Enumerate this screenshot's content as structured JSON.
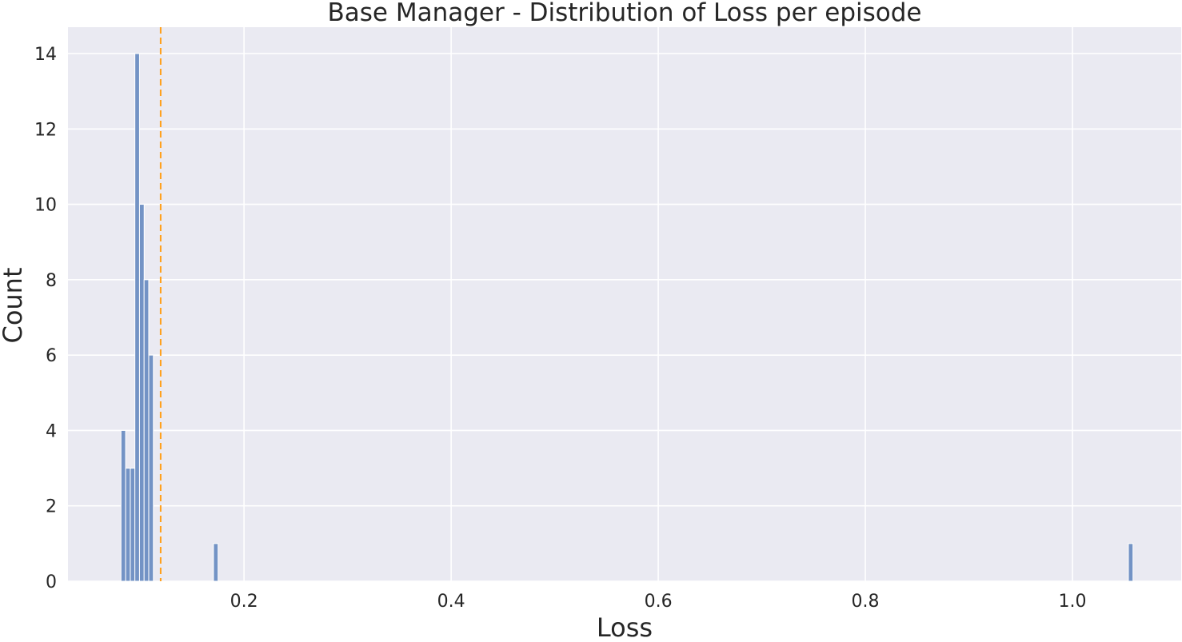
{
  "chart_data": {
    "type": "bar",
    "title": "Base Manager - Distribution of Loss per episode",
    "xlabel": "Loss",
    "ylabel": "Count",
    "xlim": [
      0.03,
      1.105
    ],
    "ylim": [
      0,
      14.7
    ],
    "xticks": [
      "0.2",
      "0.4",
      "0.6",
      "0.8",
      "1.0"
    ],
    "yticks": [
      "0",
      "2",
      "4",
      "6",
      "8",
      "10",
      "12",
      "14"
    ],
    "bin_width": 0.00446,
    "bins": [
      {
        "x0": 0.0812,
        "count": 4
      },
      {
        "x0": 0.0857,
        "count": 3
      },
      {
        "x0": 0.0902,
        "count": 3
      },
      {
        "x0": 0.0946,
        "count": 14
      },
      {
        "x0": 0.0991,
        "count": 10
      },
      {
        "x0": 0.1035,
        "count": 8
      },
      {
        "x0": 0.108,
        "count": 6
      },
      {
        "x0": 0.1705,
        "count": 1
      },
      {
        "x0": 1.054,
        "count": 1
      }
    ],
    "mean_line": {
      "x": 0.1195,
      "color": "#ff9f1a",
      "style": "dashed"
    },
    "bar_color": "#7393c5",
    "background_color": "#eaeaf2",
    "grid": true
  }
}
